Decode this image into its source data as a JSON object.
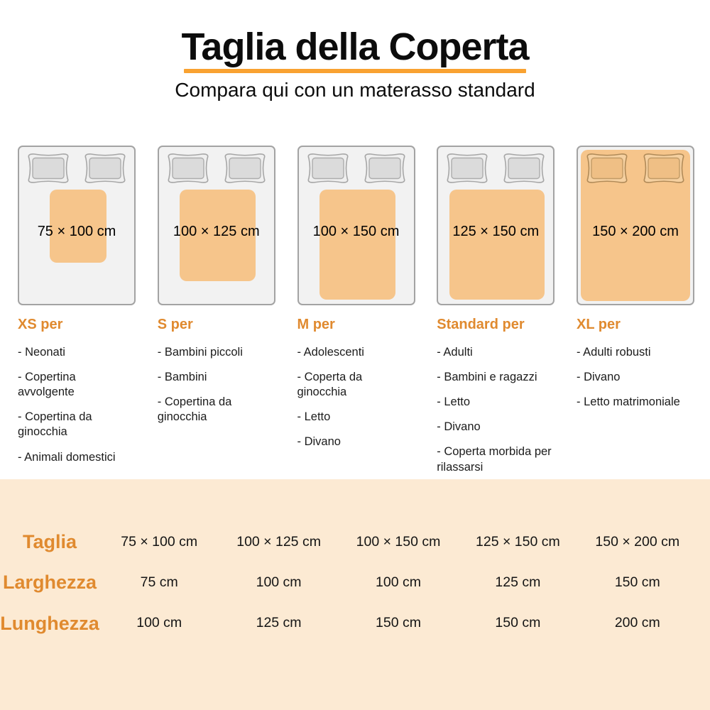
{
  "header": {
    "title": "Taglia della Coperta",
    "subtitle": "Compara qui con un materasso standard"
  },
  "colors": {
    "accent_orange": "#E08A2F",
    "underline_orange": "#F9A231",
    "blanket_orange": "#F6C58B",
    "table_background": "#FCEAD3",
    "mattress_gray": "#F2F2F2"
  },
  "sizes": [
    {
      "dimensions": "75 × 100 cm",
      "width_cm": 75,
      "length_cm": 100,
      "category": "XS per",
      "uses": [
        "Neonati",
        "Copertina avvolgente",
        "Copertina da ginocchia",
        "Animali domestici"
      ],
      "covers_full_bed": false
    },
    {
      "dimensions": "100 × 125 cm",
      "width_cm": 100,
      "length_cm": 125,
      "category": "S per",
      "uses": [
        "Bambini piccoli",
        "Bambini",
        "Copertina da ginocchia"
      ],
      "covers_full_bed": false
    },
    {
      "dimensions": "100 × 150 cm",
      "width_cm": 100,
      "length_cm": 150,
      "category": "M per",
      "uses": [
        "Adolescenti",
        "Coperta da ginocchia",
        "Letto",
        "Divano"
      ],
      "covers_full_bed": false
    },
    {
      "dimensions": "125 × 150 cm",
      "width_cm": 125,
      "length_cm": 150,
      "category": "Standard per",
      "uses": [
        "Adulti",
        "Bambini e ragazzi",
        "Letto",
        "Divano",
        "Coperta morbida per rilassarsi"
      ],
      "covers_full_bed": false
    },
    {
      "dimensions": "150 × 200 cm",
      "width_cm": 150,
      "length_cm": 200,
      "category": "XL per",
      "uses": [
        "Adulti robusti",
        "Divano",
        "Letto matrimoniale"
      ],
      "covers_full_bed": true
    }
  ],
  "table": {
    "rows": [
      {
        "label": "Taglia",
        "values": [
          "75 × 100 cm",
          "100 × 125 cm",
          "100 × 150 cm",
          "125 × 150 cm",
          "150 × 200 cm"
        ]
      },
      {
        "label": "Larghezza",
        "values": [
          "75 cm",
          "100 cm",
          "100 cm",
          "125 cm",
          "150 cm"
        ]
      },
      {
        "label": "Lunghezza",
        "values": [
          "100 cm",
          "125 cm",
          "150 cm",
          "150 cm",
          "200 cm"
        ]
      }
    ]
  }
}
